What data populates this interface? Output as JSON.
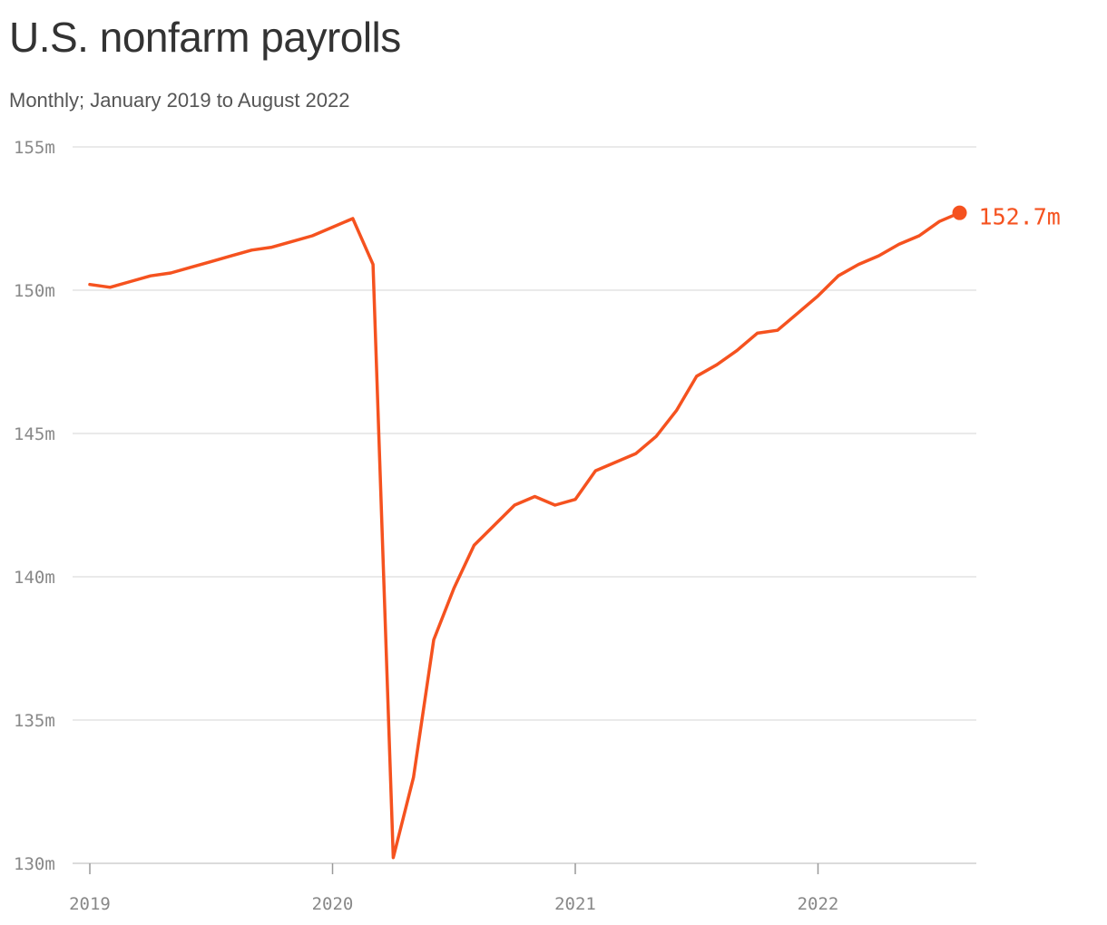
{
  "chart_data": {
    "type": "line",
    "title": "U.S. nonfarm payrolls",
    "subtitle": "Monthly; January 2019 to August 2022",
    "xlabel": "",
    "ylabel": "",
    "x_start": "2019-01",
    "x_tick_labels": [
      "2019",
      "2020",
      "2021",
      "2022"
    ],
    "y_ticks": [
      130,
      135,
      140,
      145,
      150,
      155
    ],
    "y_tick_labels": [
      "130m",
      "135m",
      "140m",
      "145m",
      "150m",
      "155m"
    ],
    "ylim": [
      130,
      155
    ],
    "grid": true,
    "line_color": "#f5521f",
    "end_label": "152.7m",
    "series": [
      {
        "values": [
          150.2,
          150.1,
          150.3,
          150.5,
          150.6,
          150.8,
          151.0,
          151.2,
          151.4,
          151.5,
          151.7,
          151.9,
          152.2,
          152.5,
          150.9,
          130.2,
          133.0,
          137.8,
          139.6,
          141.1,
          141.8,
          142.5,
          142.8,
          142.5,
          142.7,
          143.7,
          144.0,
          144.3,
          144.9,
          145.8,
          147.0,
          147.4,
          147.9,
          148.5,
          148.6,
          149.2,
          149.8,
          150.5,
          150.9,
          151.2,
          151.6,
          151.9,
          152.4,
          152.7
        ]
      }
    ]
  }
}
